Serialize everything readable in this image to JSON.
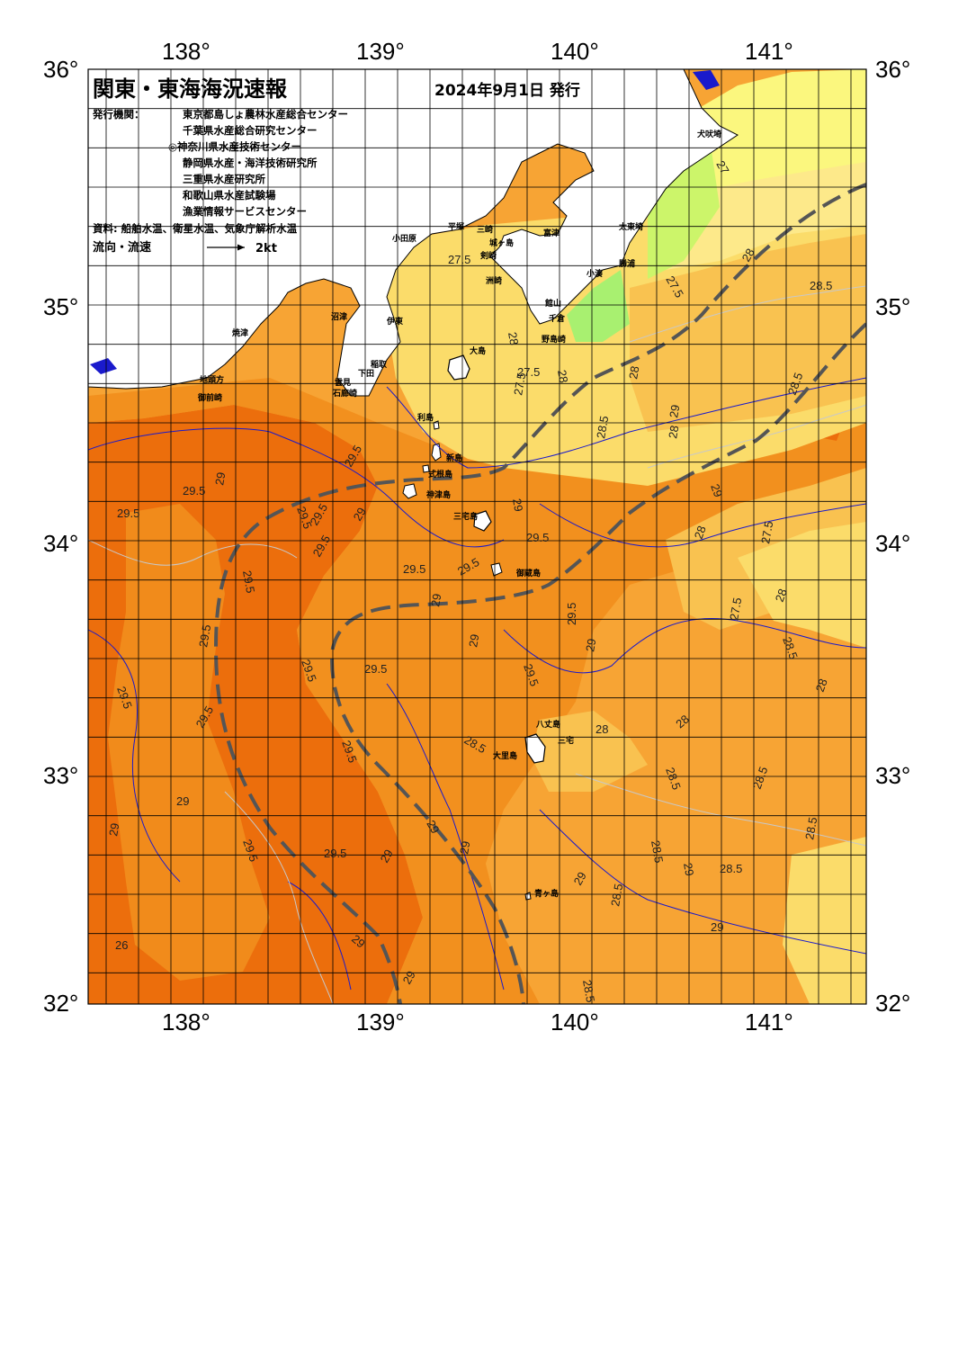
{
  "header": {
    "title": "関東・東海海況速報",
    "issue_date": "2024年9月1日 発行",
    "issuer_label": "発行機関：",
    "issuers": [
      "東京都島しょ農林水産総合センター",
      "千葉県水産総合研究センター",
      "◎神奈川県水産技術センター",
      "静岡県水産・海洋技術研究所",
      "三重県水産研究所",
      "和歌山県水産試験場",
      "漁業情報サービスセンター"
    ],
    "source": "資料: 船舶水温、衛星水温、気象庁解析水温",
    "flow_label": "流向・流速",
    "flow_scale": "2kt"
  },
  "axes": {
    "lon_ticks": [
      "138°",
      "139°",
      "140°",
      "141°"
    ],
    "lat_ticks": [
      "36°",
      "35°",
      "34°",
      "33°",
      "32°"
    ]
  },
  "colors": {
    "sea_29_5": "#ec6e0c",
    "sea_29": "#f2901e",
    "sea_28_5": "#f7a434",
    "sea_28": "#f9c250",
    "sea_27_5": "#fbdc6a",
    "sea_27": "#fde98a",
    "sea_cool": "#fbf77e",
    "sea_green": "#ccf56a",
    "sea_lightgreen": "#a8f070",
    "land": "#ffffff",
    "isotherm_blue": "#1a1acc",
    "isotherm_light": "#c8c8c8",
    "current_axis": "#555555",
    "grid": "#000000"
  },
  "place_names": [
    "犬吠埼",
    "太東埼",
    "勝浦",
    "小湊",
    "野島崎",
    "千倉",
    "館山",
    "洲崎",
    "富津",
    "城ヶ島",
    "剣崎",
    "三崎",
    "平塚",
    "小田原",
    "伊東",
    "大島",
    "稲取",
    "下田",
    "石廊崎",
    "雲見",
    "沼津",
    "焼津",
    "御前崎",
    "地頭方",
    "利島",
    "新島",
    "式根島",
    "神津島",
    "三宅島",
    "御蔵島",
    "八丈島",
    "三宅",
    "大里島",
    "青ヶ島"
  ],
  "isotherm_labels": [
    "27",
    "27.5",
    "27.5",
    "27.5",
    "27.5",
    "27.5",
    "27.5",
    "28",
    "28",
    "28",
    "28",
    "28",
    "28",
    "28",
    "28",
    "28",
    "28",
    "28.5",
    "28.5",
    "28.5",
    "28.5",
    "28.5",
    "28.5",
    "28.5",
    "28.5",
    "28.5",
    "28.5",
    "28.5",
    "28.5",
    "29",
    "29",
    "29",
    "29",
    "29",
    "29",
    "29",
    "29",
    "29",
    "29",
    "29",
    "29",
    "29",
    "29",
    "29",
    "29",
    "29",
    "29",
    "29.5",
    "29.5",
    "29.5",
    "29.5",
    "29.5",
    "29.5",
    "29.5",
    "29.5",
    "29.5",
    "29.5",
    "29.5",
    "29.5",
    "29.5",
    "29.5",
    "29.5",
    "29.5",
    "29.5",
    "29.5",
    "29.5",
    "29.5",
    "26"
  ]
}
